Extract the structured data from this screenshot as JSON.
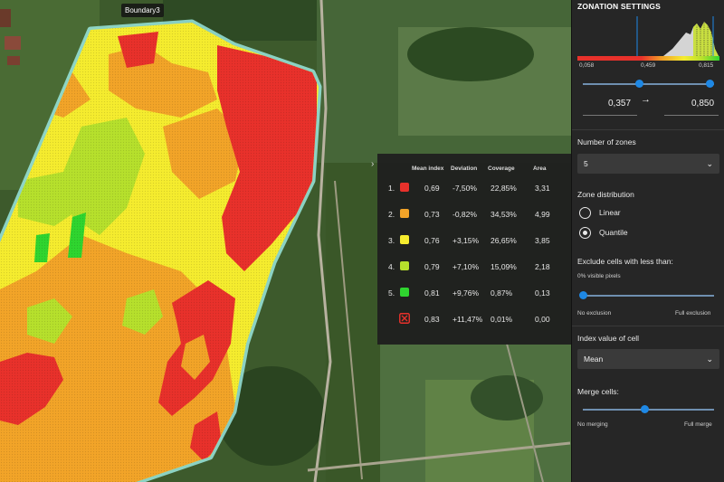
{
  "map": {
    "boundary_label": "Boundary3"
  },
  "legend": {
    "collapse_icon": "chevron-right-icon",
    "headers": [
      "Mean index",
      "Deviation",
      "Coverage",
      "Area"
    ],
    "rows": [
      {
        "num": "1.",
        "color": "#e8312b",
        "mean": "0,69",
        "deviation": "-7,50%",
        "coverage": "22,85%",
        "area": "3,31"
      },
      {
        "num": "2.",
        "color": "#f2a428",
        "mean": "0,73",
        "deviation": "-0,82%",
        "coverage": "34,53%",
        "area": "4,99"
      },
      {
        "num": "3.",
        "color": "#f5ec2e",
        "mean": "0,76",
        "deviation": "+3,15%",
        "coverage": "26,65%",
        "area": "3,85"
      },
      {
        "num": "4.",
        "color": "#b6e02c",
        "mean": "0,79",
        "deviation": "+7,10%",
        "coverage": "15,09%",
        "area": "2,18"
      },
      {
        "num": "5.",
        "color": "#2fd52f",
        "mean": "0,81",
        "deviation": "+9,76%",
        "coverage": "0,87%",
        "area": "0,13"
      },
      {
        "num": "",
        "color": "#e8312b",
        "icon": "excluded-cross-icon",
        "mean": "0,83",
        "deviation": "+11,47%",
        "coverage": "0,01%",
        "area": "0,00"
      }
    ]
  },
  "sidebar": {
    "title": "ZONATION SETTINGS",
    "histogram": {
      "tick_min": "0,058",
      "tick_mid": "0,459",
      "tick_max": "0,815"
    },
    "range": {
      "min_value": "0,357",
      "max_value": "0,850",
      "arrow_icon": "arrow-right-icon",
      "min_fraction": 0.43,
      "max_fraction": 0.97
    },
    "zones": {
      "label": "Number of zones",
      "selected": "5"
    },
    "distribution": {
      "label": "Zone distribution",
      "options": [
        {
          "label": "Linear",
          "selected": false
        },
        {
          "label": "Quantile",
          "selected": true
        }
      ]
    },
    "exclude": {
      "label": "Exclude cells with less than:",
      "sublabel": "0% visible pixels",
      "min_label": "No exclusion",
      "max_label": "Full exclusion",
      "value_fraction": 0.0
    },
    "index_value": {
      "label": "Index value of cell",
      "selected": "Mean"
    },
    "merge": {
      "label": "Merge cells:",
      "min_label": "No merging",
      "max_label": "Full merge",
      "value_fraction": 0.47
    }
  }
}
